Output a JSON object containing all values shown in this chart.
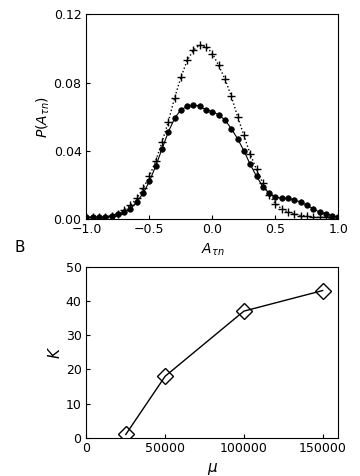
{
  "panel_A": {
    "xlabel": "$A_{\\tau n}$",
    "ylabel": "$P(A_{\\tau n})$",
    "xlim": [
      -1,
      1
    ],
    "ylim": [
      0,
      0.12
    ],
    "yticks": [
      0,
      0.04,
      0.08,
      0.12
    ],
    "xticks": [
      -1,
      -0.5,
      0,
      0.5,
      1
    ],
    "dots_x": [
      -1.0,
      -0.95,
      -0.9,
      -0.85,
      -0.8,
      -0.75,
      -0.7,
      -0.65,
      -0.6,
      -0.55,
      -0.5,
      -0.45,
      -0.4,
      -0.35,
      -0.3,
      -0.25,
      -0.2,
      -0.15,
      -0.1,
      -0.05,
      0.0,
      0.05,
      0.1,
      0.15,
      0.2,
      0.25,
      0.3,
      0.35,
      0.4,
      0.45,
      0.5,
      0.55,
      0.6,
      0.65,
      0.7,
      0.75,
      0.8,
      0.85,
      0.9,
      0.95,
      1.0
    ],
    "dots_y": [
      0.001,
      0.001,
      0.001,
      0.001,
      0.002,
      0.003,
      0.004,
      0.006,
      0.01,
      0.015,
      0.022,
      0.031,
      0.041,
      0.051,
      0.059,
      0.064,
      0.066,
      0.067,
      0.066,
      0.064,
      0.063,
      0.061,
      0.058,
      0.053,
      0.047,
      0.04,
      0.032,
      0.025,
      0.019,
      0.015,
      0.013,
      0.012,
      0.012,
      0.011,
      0.01,
      0.008,
      0.006,
      0.004,
      0.003,
      0.002,
      0.001
    ],
    "plus_x": [
      -1.0,
      -0.95,
      -0.9,
      -0.85,
      -0.8,
      -0.75,
      -0.7,
      -0.65,
      -0.6,
      -0.55,
      -0.5,
      -0.45,
      -0.4,
      -0.35,
      -0.3,
      -0.25,
      -0.2,
      -0.15,
      -0.1,
      -0.05,
      0.0,
      0.05,
      0.1,
      0.15,
      0.2,
      0.25,
      0.3,
      0.35,
      0.4,
      0.45,
      0.5,
      0.55,
      0.6,
      0.65,
      0.7,
      0.75,
      0.8,
      0.85,
      0.9,
      0.95,
      1.0
    ],
    "plus_y": [
      0.001,
      0.001,
      0.001,
      0.001,
      0.002,
      0.003,
      0.005,
      0.008,
      0.012,
      0.018,
      0.025,
      0.034,
      0.045,
      0.057,
      0.071,
      0.083,
      0.093,
      0.099,
      0.102,
      0.101,
      0.097,
      0.09,
      0.082,
      0.072,
      0.06,
      0.049,
      0.038,
      0.029,
      0.021,
      0.014,
      0.009,
      0.006,
      0.004,
      0.003,
      0.002,
      0.002,
      0.001,
      0.001,
      0.001,
      0.0,
      0.0
    ]
  },
  "panel_B": {
    "xlabel": "$\\mu$",
    "ylabel": "$K$",
    "xlim": [
      0,
      160000
    ],
    "ylim": [
      0,
      50
    ],
    "yticks": [
      0,
      10,
      20,
      30,
      40,
      50
    ],
    "xticks": [
      0,
      50000,
      100000,
      150000
    ],
    "xticklabels": [
      "0",
      "50000",
      "100000",
      "150000"
    ],
    "mu": [
      25000,
      50000,
      100000,
      150000
    ],
    "K": [
      1,
      18,
      37,
      43
    ]
  }
}
